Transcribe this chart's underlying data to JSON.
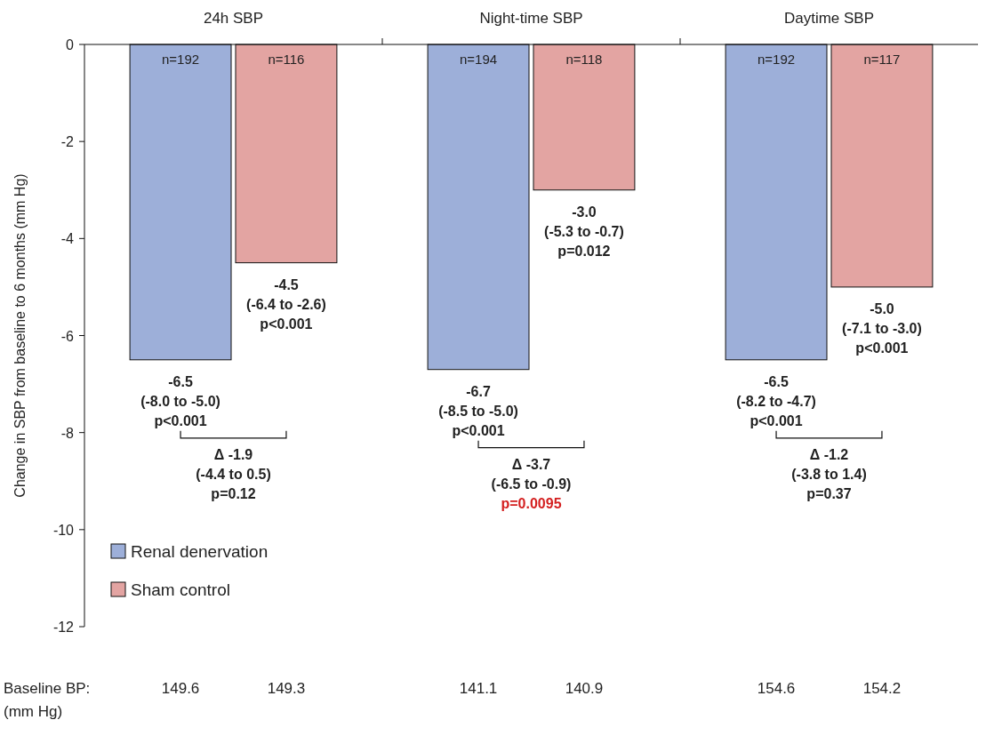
{
  "chart_data": {
    "type": "bar",
    "ylabel": "Change in SBP from baseline to 6 months (mm Hg)",
    "categories": [
      "24h SBP",
      "Night-time SBP",
      "Daytime SBP"
    ],
    "series": [
      {
        "name": "Renal denervation",
        "color": "#9dafd9",
        "values": [
          -6.5,
          -6.7,
          -6.5
        ],
        "value_labels": [
          "-6.5\n(-8.0 to -5.0)\np<0.001",
          "-6.7\n(-8.5 to -5.0)\np<0.001",
          "-6.5\n(-8.2 to -4.7)\np<0.001"
        ]
      },
      {
        "name": "Sham control",
        "color": "#e3a4a2",
        "values": [
          -4.5,
          -3.0,
          -5.0
        ],
        "value_labels": [
          "-4.5\n(-6.4 to -2.6)\np<0.001",
          "-3.0\n(-5.3 to -0.7)\np=0.012",
          "-5.0\n(-7.1 to -3.0)\np<0.001"
        ]
      }
    ],
    "ylim": [
      -12,
      0
    ],
    "yticks": [
      0,
      -2,
      -4,
      -6,
      -8,
      -10,
      -12
    ],
    "grid": false,
    "legend": "bottom left",
    "annotations": [
      "n=192",
      "n=116",
      "n=194",
      "n=118",
      "n=192",
      "n=117",
      "Δ -1.9\n(-4.4 to 0.5)\np=0.12",
      "Δ -3.7\n(-6.5 to -0.9)\np=0.0095",
      "Δ -1.2\n(-3.8 to 1.4)\np=0.37",
      "Baseline BP:\n(mm Hg)",
      "149.6",
      "149.3",
      "141.1",
      "140.9",
      "154.6",
      "154.2"
    ]
  }
}
